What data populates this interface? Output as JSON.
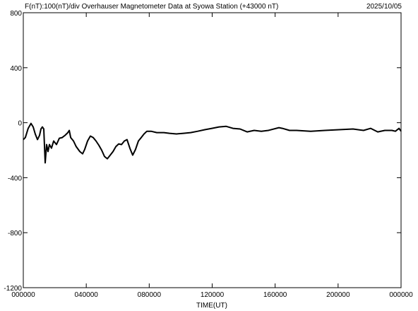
{
  "chart_data": {
    "type": "line",
    "title": "F(nT):100(nT)/div  Overhauser Magnetometer Data at Syowa Station (+43000 nT)",
    "date": "2025/10/05",
    "xlabel": "TIME(UT)",
    "xlim": [
      0,
      24
    ],
    "xticks": [
      {
        "value": 0,
        "label": "000000"
      },
      {
        "value": 4,
        "label": "040000"
      },
      {
        "value": 8,
        "label": "080000"
      },
      {
        "value": 12,
        "label": "120000"
      },
      {
        "value": 16,
        "label": "160000"
      },
      {
        "value": 20,
        "label": "200000"
      },
      {
        "value": 24,
        "label": "000000"
      }
    ],
    "ylim": [
      -1200,
      800
    ],
    "yticks": [
      800,
      400,
      0,
      -400,
      -800,
      -1200
    ],
    "color": "#000000",
    "x": [
      0,
      0.13,
      0.31,
      0.49,
      0.63,
      0.76,
      0.9,
      1.03,
      1.12,
      1.21,
      1.3,
      1.39,
      1.48,
      1.57,
      1.66,
      1.79,
      1.93,
      2.11,
      2.29,
      2.47,
      2.65,
      2.83,
      2.92,
      3.01,
      3.19,
      3.36,
      3.59,
      3.77,
      3.9,
      4.08,
      4.26,
      4.44,
      4.62,
      4.8,
      4.98,
      5.16,
      5.34,
      5.52,
      5.7,
      5.88,
      6.06,
      6.24,
      6.42,
      6.59,
      6.77,
      6.95,
      7.13,
      7.31,
      7.49,
      7.67,
      7.85,
      8.12,
      8.48,
      8.93,
      9.29,
      9.73,
      10.18,
      10.63,
      11.08,
      11.53,
      11.98,
      12.43,
      12.88,
      13.32,
      13.77,
      14.22,
      14.67,
      15.12,
      15.57,
      16.24,
      16.46,
      16.91,
      17.36,
      18.26,
      19.16,
      20.05,
      20.95,
      21.62,
      22.07,
      22.52,
      22.97,
      23.42,
      23.64,
      23.87,
      24
    ],
    "values": [
      -123,
      -108,
      -41,
      -5,
      -31,
      -82,
      -123,
      -92,
      -46,
      -31,
      -46,
      -292,
      -159,
      -210,
      -159,
      -185,
      -133,
      -159,
      -113,
      -108,
      -92,
      -72,
      -56,
      -108,
      -133,
      -174,
      -210,
      -226,
      -195,
      -133,
      -97,
      -108,
      -133,
      -164,
      -200,
      -246,
      -262,
      -236,
      -210,
      -174,
      -154,
      -159,
      -133,
      -123,
      -185,
      -236,
      -195,
      -133,
      -108,
      -82,
      -62,
      -62,
      -72,
      -72,
      -77,
      -82,
      -77,
      -72,
      -62,
      -51,
      -41,
      -31,
      -26,
      -41,
      -46,
      -67,
      -56,
      -62,
      -56,
      -36,
      -41,
      -56,
      -56,
      -62,
      -56,
      -51,
      -46,
      -56,
      -41,
      -67,
      -56,
      -56,
      -62,
      -41,
      -62
    ]
  }
}
